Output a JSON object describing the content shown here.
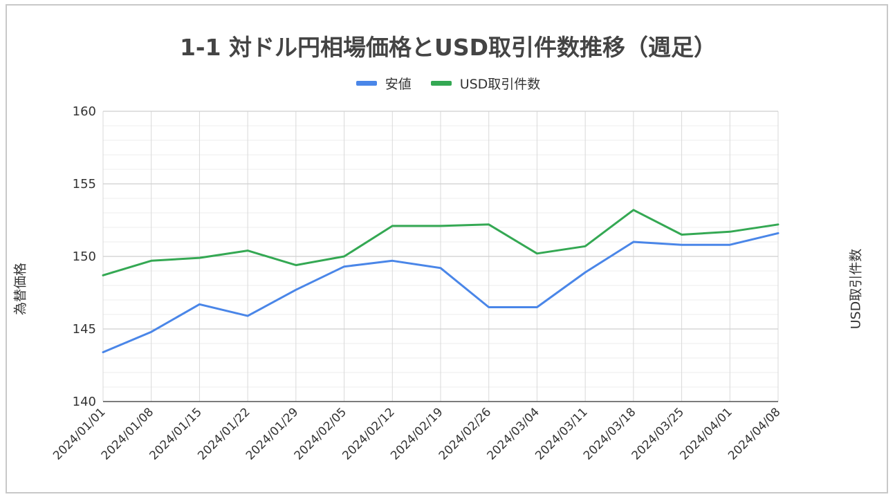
{
  "chart_data": {
    "type": "line",
    "title": "1-1 対ドル円相場価格とUSD取引件数推移（週足）",
    "ylabel": "為替価格",
    "ylabel_right": "USD取引件数",
    "xlabel": "",
    "ylim": [
      140,
      160
    ],
    "yticks": [
      140,
      145,
      150,
      155,
      160
    ],
    "grid": true,
    "legend_position": "top-center",
    "categories": [
      "2024/01/01",
      "2024/01/08",
      "2024/01/15",
      "2024/01/22",
      "2024/01/29",
      "2024/02/05",
      "2024/02/12",
      "2024/02/19",
      "2024/02/26",
      "2024/03/04",
      "2024/03/11",
      "2024/03/18",
      "2024/03/25",
      "2024/04/01",
      "2024/04/08"
    ],
    "series": [
      {
        "name": "安値",
        "color": "#4a86e8",
        "values": [
          143.4,
          144.8,
          146.7,
          145.9,
          147.7,
          149.3,
          149.7,
          149.2,
          146.5,
          146.5,
          148.9,
          151.0,
          150.8,
          150.8,
          151.6
        ]
      },
      {
        "name": "USD取引件数",
        "color": "#34a853",
        "values": [
          148.7,
          149.7,
          149.9,
          150.4,
          149.4,
          150.0,
          152.1,
          152.1,
          152.2,
          150.2,
          150.7,
          153.2,
          151.5,
          151.7,
          152.2
        ]
      }
    ]
  }
}
